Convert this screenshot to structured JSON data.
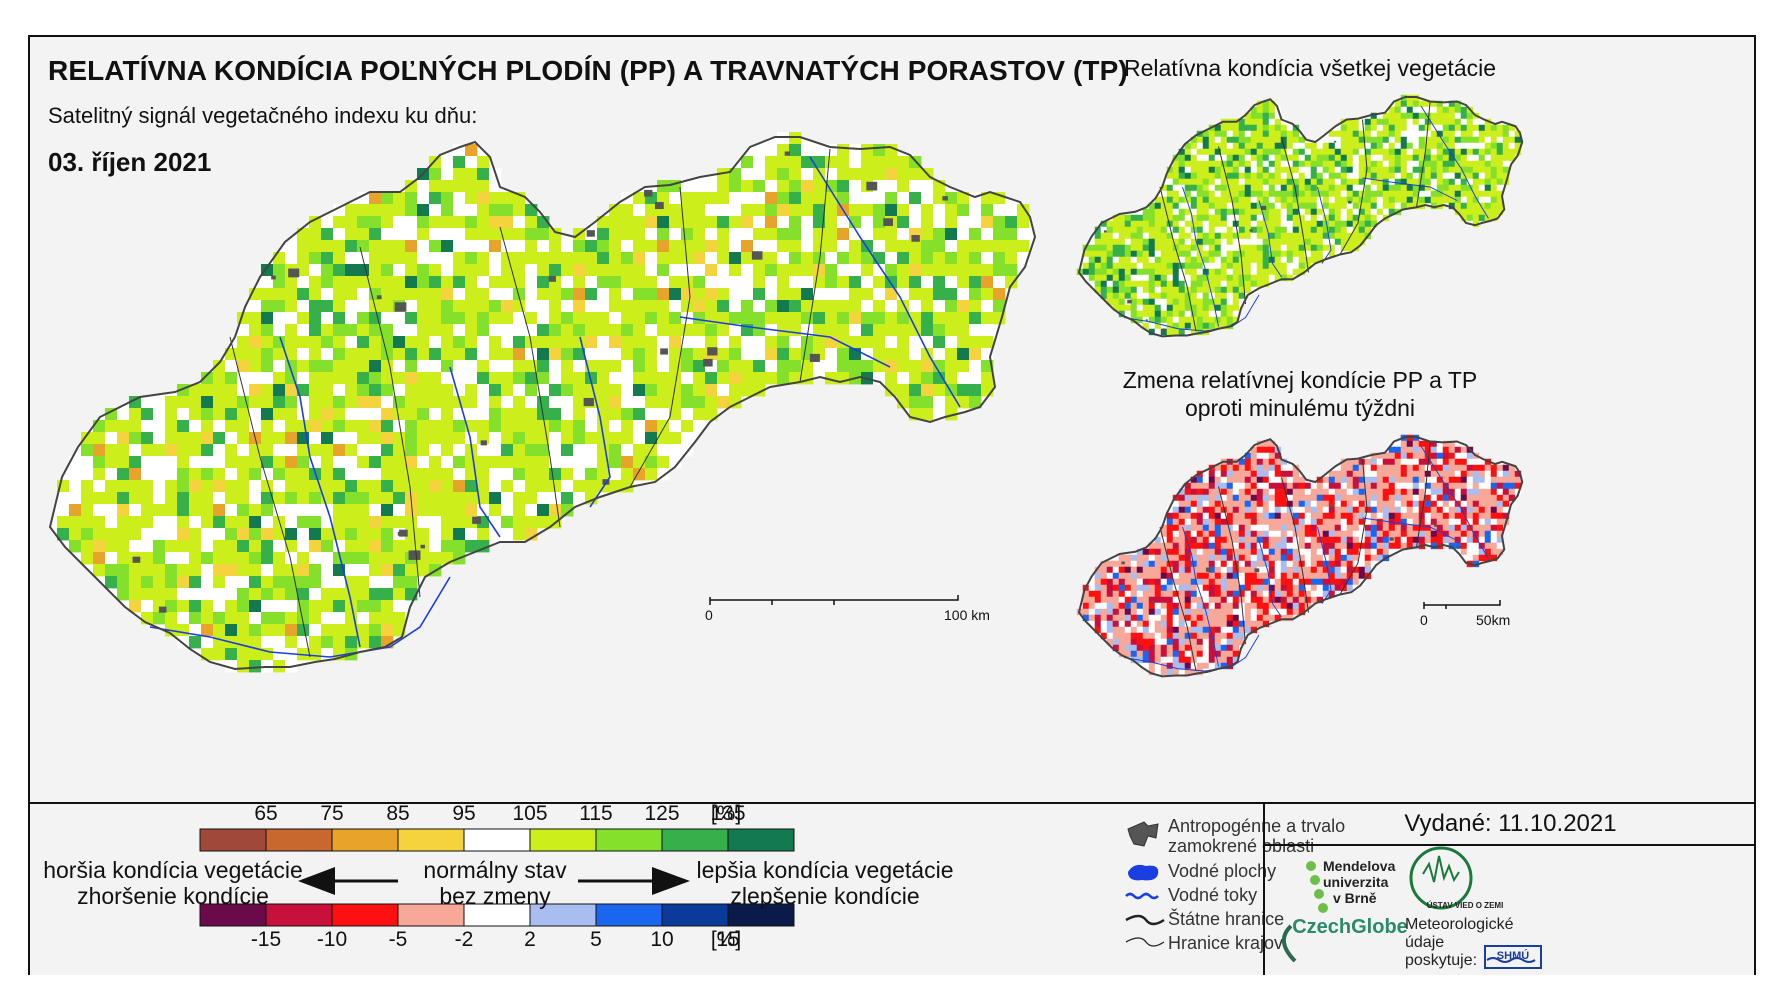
{
  "header": {
    "title": "RELATÍVNA KONDÍCIA POĽNÝCH PLODÍN (PP) A TRAVNATÝCH PORASTOV (TP)",
    "subtitle": "Satelitný signál vegetačného indexu ku dňu:",
    "date": "03. říjen 2021"
  },
  "inset_top": {
    "title": "Relatívna kondícia všetkej vegetácie"
  },
  "inset_bottom": {
    "title_line1": "Zmena relatívnej kondície PP a TP",
    "title_line2": "oproti minulému týždni"
  },
  "scalebar_main": {
    "start": "0",
    "end": "100 km"
  },
  "scalebar_small": {
    "start": "0",
    "end": "50km"
  },
  "legend": {
    "condition_ticks": [
      "65",
      "75",
      "85",
      "95",
      "105",
      "115",
      "125",
      "135",
      "[%]"
    ],
    "condition_colors": [
      "#a0493a",
      "#c8682e",
      "#e8a32a",
      "#f5d33c",
      "#ffffff",
      "#ccee1a",
      "#84e02a",
      "#35b04a",
      "#137a50"
    ],
    "change_ticks": [
      "-15",
      "-10",
      "-5",
      "-2",
      "2",
      "5",
      "10",
      "15",
      "[%]"
    ],
    "change_colors": [
      "#6b0a4a",
      "#c8103c",
      "#ff1010",
      "#f8a898",
      "#ffffff",
      "#a8bdf0",
      "#1a66ee",
      "#0a3a9a",
      "#0a1a4a"
    ],
    "worse_line1": "horšia kondícia vegetácie",
    "worse_line2": "zhoršenie kondície",
    "normal_line1": "normálny stav",
    "normal_line2": "bez zmeny",
    "better_line1": "lepšia kondícia vegetácie",
    "better_line2": "zlepšenie kondície"
  },
  "map_legend": {
    "anthropogenic_line1": "Antropogénne a trvalo",
    "anthropogenic_line2": "zamokrené oblasti",
    "water_bodies": "Vodné plochy",
    "rivers": "Vodné toky",
    "state_border": "Štátne hranice",
    "region_border": "Hranice krajov"
  },
  "issued": "Vydané: 11.10.2021",
  "logos": {
    "mendel_line1": "Mendelova",
    "mendel_line2": "univerzita",
    "mendel_line3": "v Brně",
    "czechglobe": "CzechGlobe",
    "ustav": "ÚSTAV VIED O ZEMI",
    "meteo_line1": "Meteorologické",
    "meteo_line2": "údaje",
    "meteo_line3": "poskytuje:",
    "shmu": "SHMÚ"
  }
}
